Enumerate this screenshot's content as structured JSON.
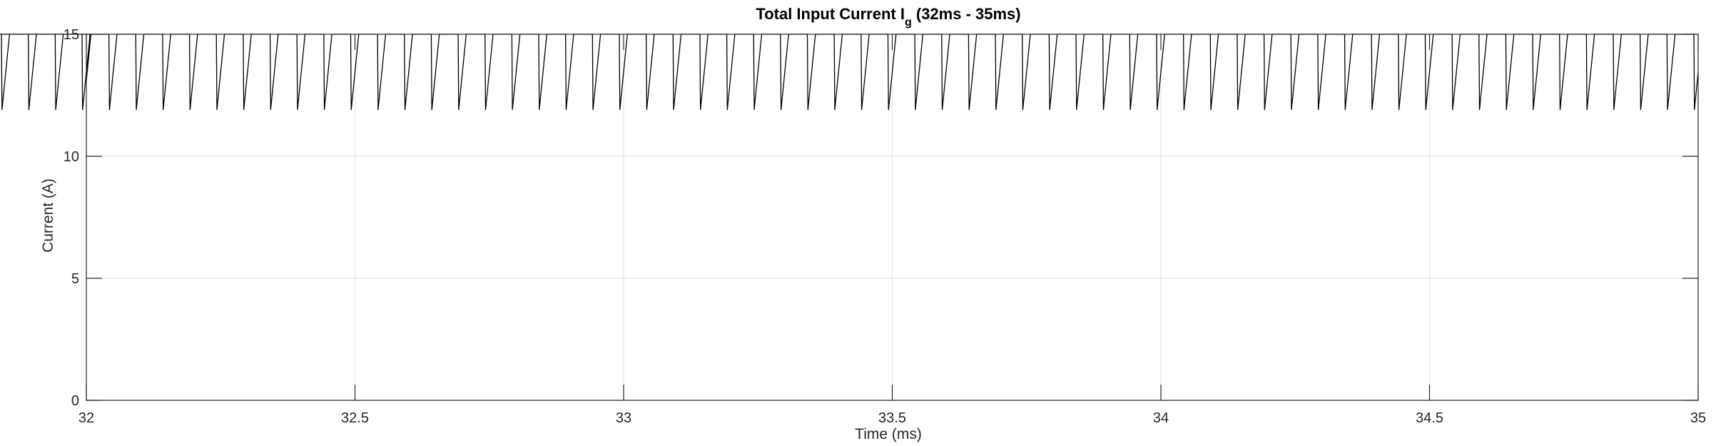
{
  "chart_data": {
    "type": "line",
    "title": "Total Input Current I",
    "title_subscript": "g",
    "title_suffix": " (32ms - 35ms)",
    "xlabel": "Time (ms)",
    "ylabel": "Current (A)",
    "xlim": [
      32,
      35
    ],
    "ylim": [
      0,
      15
    ],
    "xticks": [
      32,
      32.5,
      33,
      33.5,
      34,
      34.5,
      35
    ],
    "xtick_labels": [
      "32",
      "32.5",
      "33",
      "33.5",
      "34",
      "34.5",
      "35"
    ],
    "yticks": [
      0,
      5,
      10,
      15
    ],
    "ytick_labels": [
      "0",
      "5",
      "10",
      "15"
    ],
    "grid": true,
    "series": [
      {
        "color": "#000000",
        "waveform": "sawtooth",
        "period_ms": 0.05,
        "phase_ms": 0.043,
        "min_value": 11.9,
        "max_value": 15.0,
        "rise_fraction": 0.28,
        "first_value": 13.1,
        "last_value": 13.1
      }
    ]
  }
}
